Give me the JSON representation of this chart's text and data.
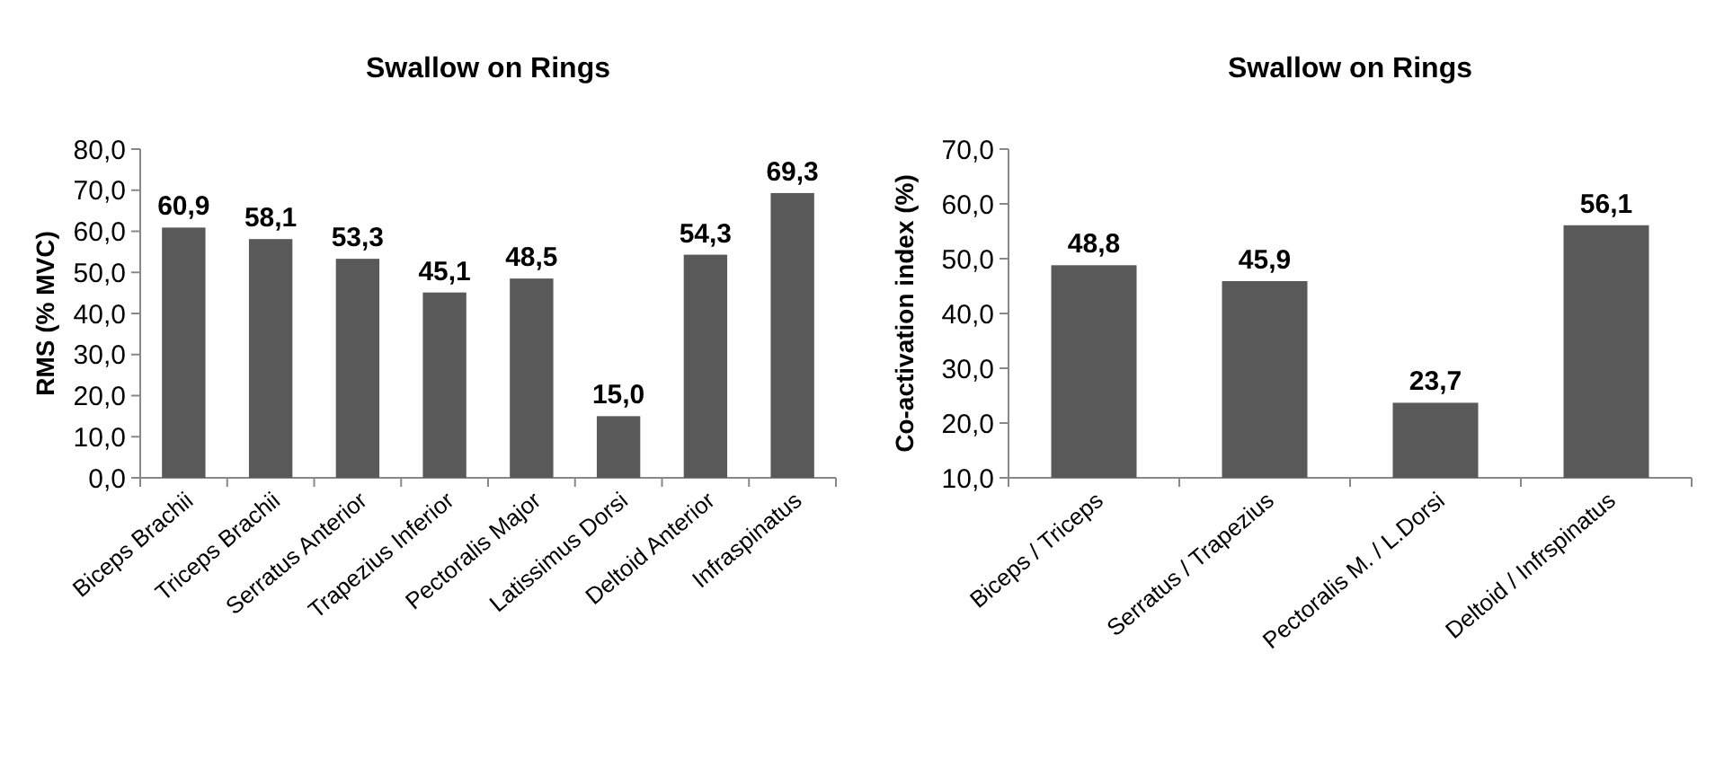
{
  "chart_data": [
    {
      "type": "bar",
      "title": "Swallow on Rings",
      "ylabel": "RMS (% MVC)",
      "categories": [
        "Biceps Brachii",
        "Triceps Brachii",
        "Serratus Anterior",
        "Trapezius Inferior",
        "Pectoralis Major",
        "Latissimus Dorsi",
        "Deltoid Anterior",
        "Infraspinatus"
      ],
      "values": [
        60.9,
        58.1,
        53.3,
        45.1,
        48.5,
        15.0,
        54.3,
        69.3
      ],
      "value_labels": [
        "60,9",
        "58,1",
        "53,3",
        "45,1",
        "48,5",
        "15,0",
        "54,3",
        "69,3"
      ],
      "color": "#595959",
      "ylim": [
        0,
        80
      ],
      "yticks": [
        {
          "value": 0,
          "label": "0,0"
        },
        {
          "value": 10,
          "label": "10,0"
        },
        {
          "value": 20,
          "label": "20,0"
        },
        {
          "value": 30,
          "label": "30,0"
        },
        {
          "value": 40,
          "label": "40,0"
        },
        {
          "value": 50,
          "label": "50,0"
        },
        {
          "value": 60,
          "label": "60,0"
        },
        {
          "value": 70,
          "label": "70,0"
        },
        {
          "value": 80,
          "label": "80,0"
        }
      ],
      "grid": false
    },
    {
      "type": "bar",
      "title": "Swallow on Rings",
      "ylabel": "Co-activation index  (%)",
      "categories": [
        "Biceps / Triceps",
        "Serratus / Trapezius",
        "Pectoralis M. / L.Dorsi",
        "Deltoid / Infrspinatus"
      ],
      "values": [
        48.8,
        45.9,
        23.7,
        56.1
      ],
      "value_labels": [
        "48,8",
        "45,9",
        "23,7",
        "56,1"
      ],
      "color": "#595959",
      "ylim": [
        10,
        70
      ],
      "yticks": [
        {
          "value": 10,
          "label": "10,0"
        },
        {
          "value": 20,
          "label": "20,0"
        },
        {
          "value": 30,
          "label": "30,0"
        },
        {
          "value": 40,
          "label": "40,0"
        },
        {
          "value": 50,
          "label": "50,0"
        },
        {
          "value": 60,
          "label": "60,0"
        },
        {
          "value": 70,
          "label": "70,0"
        }
      ],
      "grid": false
    }
  ]
}
